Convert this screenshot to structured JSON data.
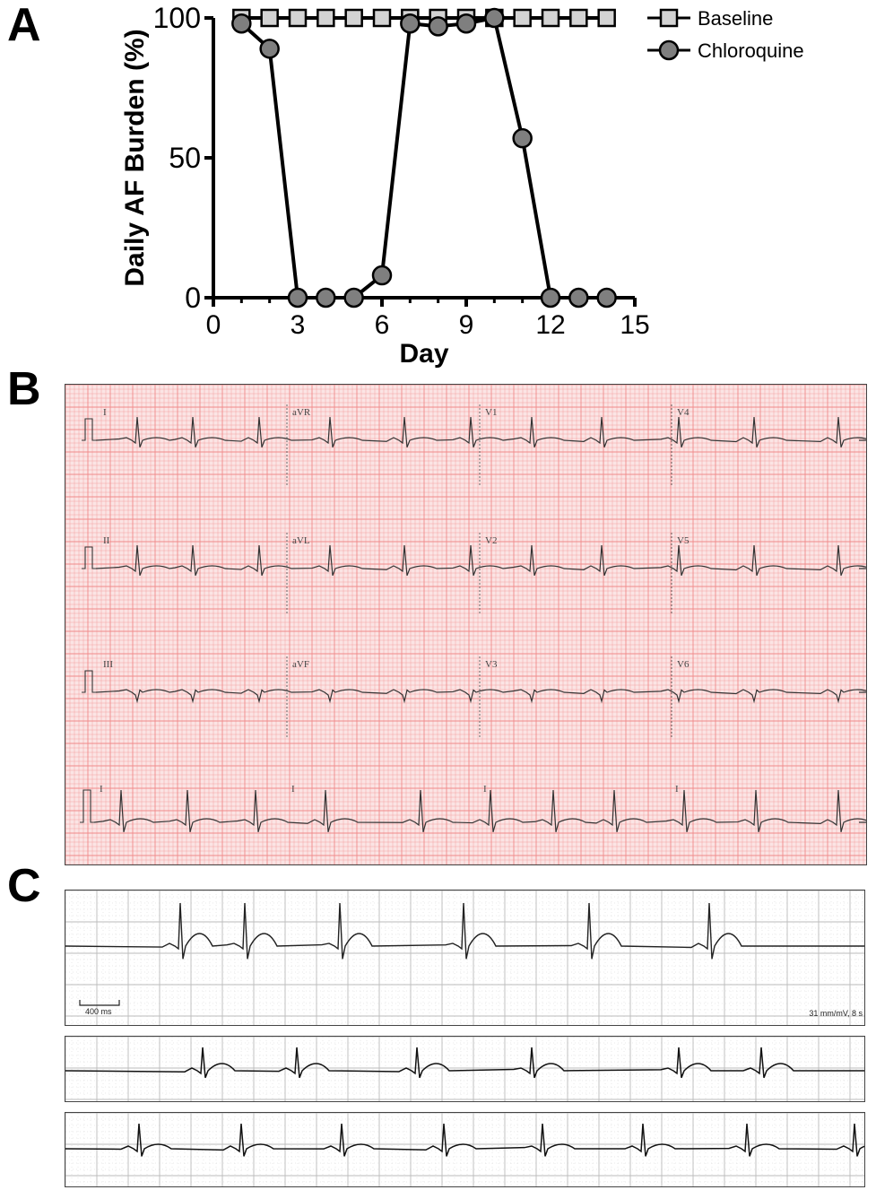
{
  "panels": {
    "a": "A",
    "b": "B",
    "c": "C"
  },
  "chart_data": {
    "type": "line",
    "xlabel": "Day",
    "ylabel": "Daily AF Burden (%)",
    "xlim": [
      0,
      15
    ],
    "ylim": [
      0,
      100
    ],
    "xticks": [
      "0",
      "3",
      "6",
      "9",
      "12",
      "15"
    ],
    "yticks": [
      "0",
      "50",
      "100"
    ],
    "legend_position": "top-right",
    "series": [
      {
        "name": "Baseline",
        "marker": "square",
        "color": "#d3d3d3",
        "x": [
          1,
          2,
          3,
          4,
          5,
          6,
          7,
          8,
          9,
          10,
          11,
          12,
          13,
          14
        ],
        "y": [
          100,
          100,
          100,
          100,
          100,
          100,
          100,
          100,
          100,
          100,
          100,
          100,
          100,
          100
        ]
      },
      {
        "name": "Chloroquine",
        "marker": "circle",
        "color": "#7f7f7f",
        "x": [
          1,
          2,
          3,
          4,
          5,
          6,
          7,
          8,
          9,
          10,
          11,
          12,
          13,
          14
        ],
        "y": [
          98,
          89,
          0,
          0,
          0,
          8,
          98,
          97,
          98,
          100,
          57,
          0,
          0,
          0
        ]
      }
    ]
  },
  "ecg12": {
    "leads": [
      [
        "I",
        "aVR",
        "V1",
        "V4"
      ],
      [
        "II",
        "aVL",
        "V2",
        "V5"
      ],
      [
        "III",
        "aVF",
        "V3",
        "V6"
      ]
    ],
    "rhythm_label": "I",
    "grid_color": "#f08a8a",
    "paper_color": "#fbe4e4"
  },
  "strips": {
    "scale_label": "400 ms",
    "gain_label": "31 mm/mV, 8 s"
  }
}
